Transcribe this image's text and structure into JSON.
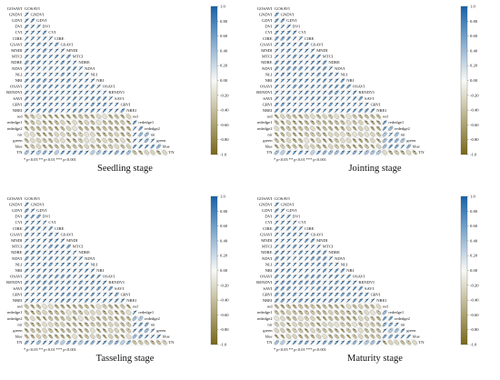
{
  "chart_data": [
    {
      "type": "heatmap",
      "title": "Seedling stage",
      "variables": [
        "GOSAVI",
        "GNDVI",
        "GDVI",
        "DVI",
        "CVI",
        "CIRE",
        "GSAVI",
        "MNDI",
        "MTCI",
        "NDRE",
        "NDVI",
        "NLI",
        "NRI",
        "OSAVI",
        "RENDVI",
        "SAVI",
        "GRVI",
        "NREI",
        "red",
        "rededge1",
        "rededge2",
        "nir",
        "green",
        "blue",
        "TN"
      ],
      "value_range": [
        -1.0,
        1.0
      ],
      "colorbar_ticks": [
        "1.0",
        "0.80",
        "0.60",
        "0.40",
        "0.20",
        "0.00",
        "-0.20",
        "-0.40",
        "-0.60",
        "-0.80",
        "-1.0"
      ],
      "significance_legend": "* p<0.05  ** p<0.01  *** p<0.001"
    },
    {
      "type": "heatmap",
      "title": "Jointing stage",
      "variables": [
        "GOSAVI",
        "GNDVI",
        "GDVI",
        "DVI",
        "CVI",
        "CIRE",
        "GSAVI",
        "MNDI",
        "MTCI",
        "NDRE",
        "NDVI",
        "NLI",
        "NRI",
        "OSAVI",
        "RENDVI",
        "SAVI",
        "GRVI",
        "NREI",
        "red",
        "rededge1",
        "rededge2",
        "nir",
        "green",
        "blue",
        "TN"
      ],
      "value_range": [
        -1.0,
        1.0
      ],
      "colorbar_ticks": [
        "1.0",
        "0.80",
        "0.60",
        "0.40",
        "0.20",
        "0.00",
        "-0.20",
        "-0.40",
        "-0.60",
        "-0.80",
        "-1.0"
      ],
      "significance_legend": "* p<0.05  ** p<0.01  *** p<0.001"
    },
    {
      "type": "heatmap",
      "title": "Tasseling stage",
      "variables": [
        "GOSAVI",
        "GNDVI",
        "GDVI",
        "DVI",
        "CVI",
        "CIRE",
        "GSAVI",
        "MNDI",
        "MTCI",
        "NDRE",
        "NDVI",
        "NLI",
        "NRI",
        "OSAVI",
        "RENDVI",
        "SAVI",
        "GRVI",
        "NREI",
        "red",
        "rededge1",
        "rededge2",
        "nir",
        "green",
        "blue",
        "TN"
      ],
      "value_range": [
        -1.0,
        1.0
      ],
      "colorbar_ticks": [
        "1.0",
        "0.80",
        "0.60",
        "0.40",
        "0.20",
        "0.00",
        "-0.20",
        "-0.40",
        "-0.60",
        "-0.80",
        "-1.0"
      ],
      "significance_legend": "* p<0.05  ** p<0.01  *** p<0.001"
    },
    {
      "type": "heatmap",
      "title": "Maturity stage",
      "variables": [
        "GOSAVI",
        "GNDVI",
        "GDVI",
        "DVI",
        "CVI",
        "CIRE",
        "GSAVI",
        "MNDI",
        "MTCI",
        "NDRE",
        "NDVI",
        "NLI",
        "NRI",
        "OSAVI",
        "RENDVI",
        "SAVI",
        "GRVI",
        "NREI",
        "red",
        "rededge1",
        "rededge2",
        "nir",
        "green",
        "blue",
        "TN"
      ],
      "value_range": [
        -1.0,
        1.0
      ],
      "colorbar_ticks": [
        "1.0",
        "0.80",
        "0.60",
        "0.40",
        "0.20",
        "0.00",
        "-0.20",
        "-0.40",
        "-0.60",
        "-0.80",
        "-1.0"
      ],
      "significance_legend": "* p<0.05  ** p<0.01  *** p<0.001"
    }
  ]
}
